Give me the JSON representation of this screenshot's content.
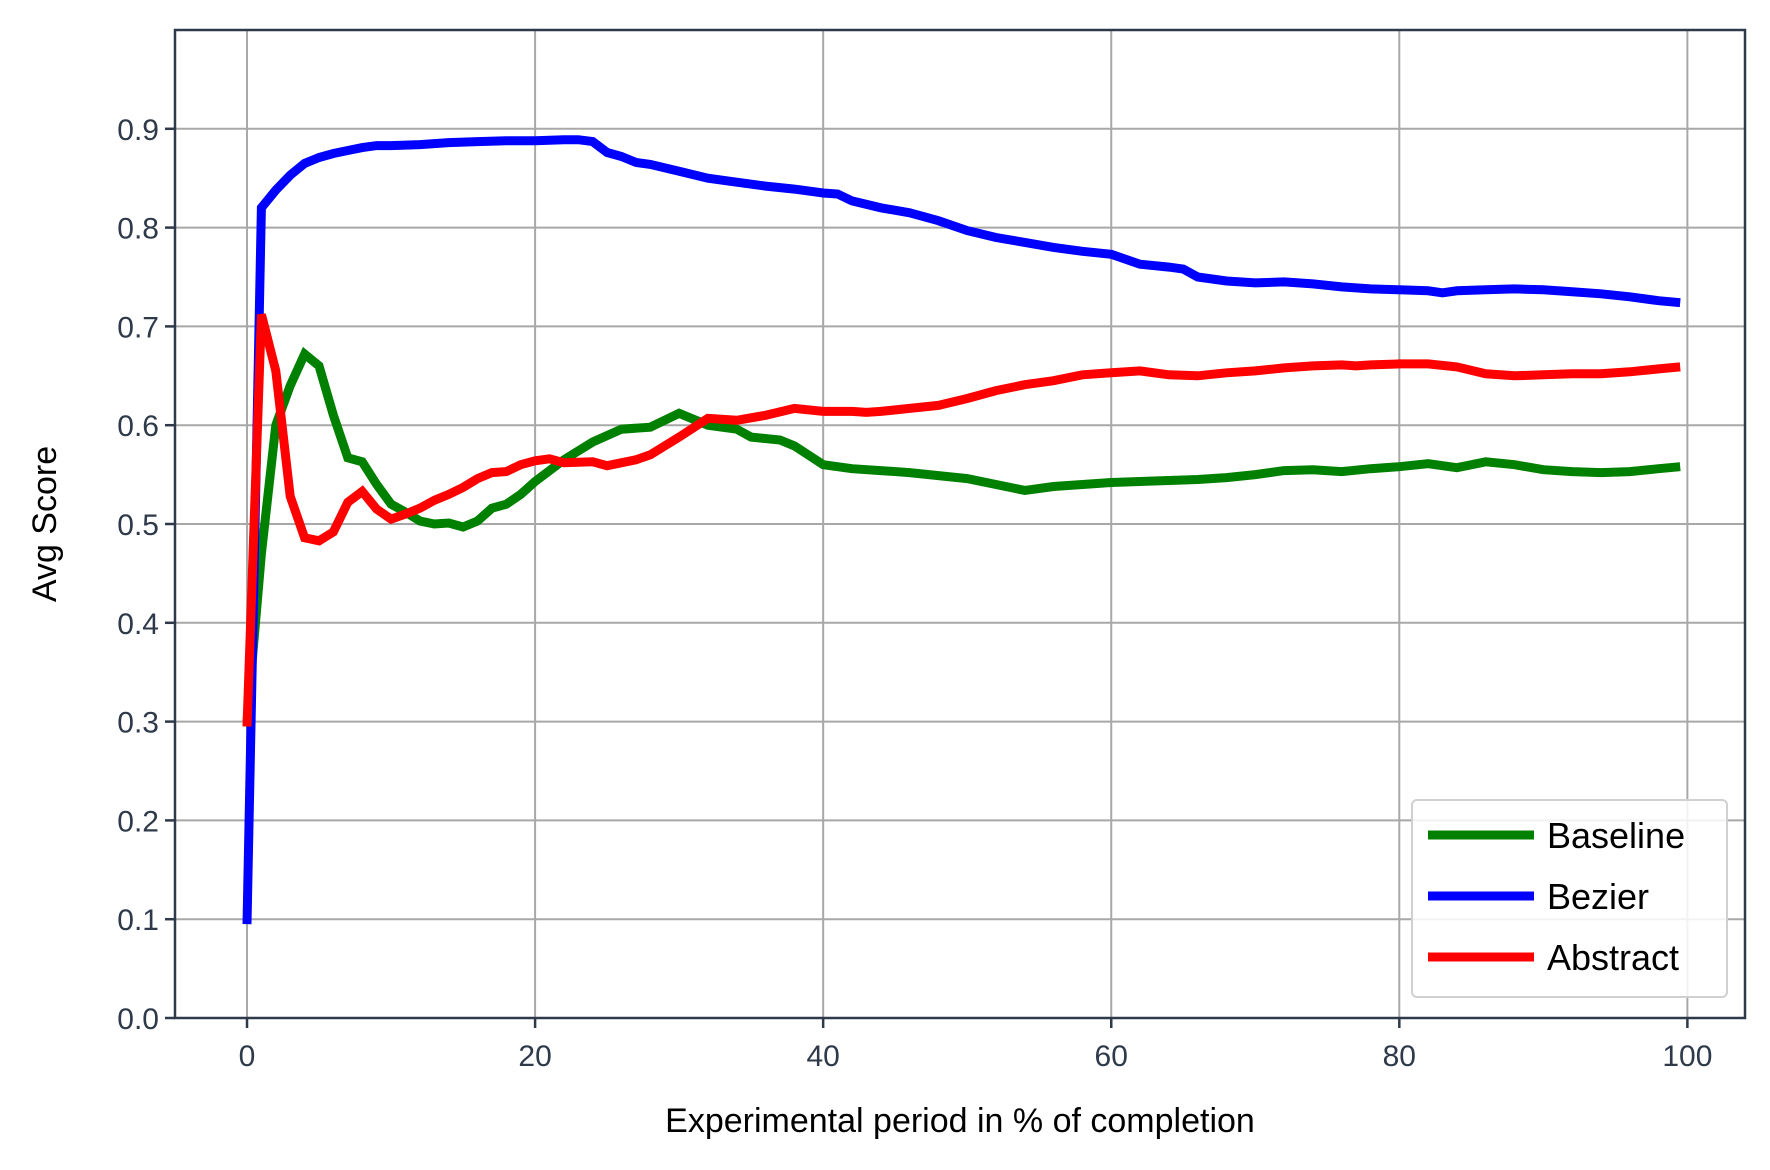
{
  "chart_data": {
    "type": "line",
    "title": "",
    "xlabel": "Experimental period in % of completion",
    "ylabel": "Avg Score",
    "xlim": [
      -5,
      104
    ],
    "ylim": [
      0.0,
      1.0
    ],
    "xticks": [
      0,
      20,
      40,
      60,
      80,
      100
    ],
    "yticks": [
      0.0,
      0.1,
      0.2,
      0.3,
      0.4,
      0.5,
      0.6,
      0.7,
      0.8,
      0.9
    ],
    "xtick_labels": [
      "0",
      "20",
      "40",
      "60",
      "80",
      "100"
    ],
    "ytick_labels": [
      "0.0",
      "0.1",
      "0.2",
      "0.3",
      "0.4",
      "0.5",
      "0.6",
      "0.7",
      "0.8",
      "0.9"
    ],
    "grid": true,
    "legend_position": "bottom-right",
    "series": [
      {
        "name": "Baseline",
        "color": "#008000",
        "x": [
          0,
          1,
          2,
          3,
          4,
          5,
          6,
          7,
          8,
          9,
          10,
          11,
          12,
          13,
          14,
          15,
          16,
          17,
          18,
          19,
          20,
          22,
          24,
          26,
          28,
          30,
          32,
          34,
          35,
          37,
          38,
          40,
          42,
          44,
          46,
          48,
          50,
          52,
          54,
          56,
          58,
          60,
          62,
          64,
          66,
          68,
          70,
          72,
          74,
          76,
          78,
          80,
          82,
          84,
          86,
          88,
          90,
          92,
          94,
          96,
          98,
          99.5
        ],
        "y": [
          0.3,
          0.47,
          0.6,
          0.64,
          0.672,
          0.66,
          0.61,
          0.567,
          0.563,
          0.54,
          0.52,
          0.512,
          0.503,
          0.5,
          0.501,
          0.497,
          0.503,
          0.516,
          0.52,
          0.53,
          0.543,
          0.565,
          0.583,
          0.596,
          0.598,
          0.612,
          0.6,
          0.596,
          0.588,
          0.585,
          0.579,
          0.56,
          0.556,
          0.554,
          0.552,
          0.549,
          0.546,
          0.54,
          0.534,
          0.538,
          0.54,
          0.542,
          0.543,
          0.544,
          0.545,
          0.547,
          0.55,
          0.554,
          0.555,
          0.553,
          0.556,
          0.558,
          0.561,
          0.557,
          0.563,
          0.56,
          0.555,
          0.553,
          0.552,
          0.553,
          0.556,
          0.558
        ]
      },
      {
        "name": "Bezier",
        "color": "#0000ff",
        "x": [
          0,
          1,
          2,
          3,
          4,
          5,
          6,
          7,
          8,
          9,
          10,
          12,
          14,
          16,
          18,
          20,
          22,
          23,
          24,
          25,
          26,
          27,
          28,
          30,
          32,
          34,
          36,
          38,
          40,
          41,
          42,
          44,
          46,
          48,
          50,
          52,
          54,
          56,
          58,
          60,
          62,
          64,
          65,
          66,
          68,
          70,
          72,
          74,
          76,
          78,
          80,
          82,
          83,
          84,
          86,
          88,
          90,
          92,
          94,
          96,
          98,
          99.5
        ],
        "y": [
          0.095,
          0.82,
          0.838,
          0.853,
          0.865,
          0.871,
          0.875,
          0.878,
          0.881,
          0.883,
          0.883,
          0.884,
          0.886,
          0.887,
          0.888,
          0.888,
          0.889,
          0.889,
          0.887,
          0.876,
          0.872,
          0.866,
          0.864,
          0.857,
          0.85,
          0.846,
          0.842,
          0.839,
          0.835,
          0.834,
          0.827,
          0.82,
          0.815,
          0.807,
          0.797,
          0.79,
          0.785,
          0.78,
          0.776,
          0.773,
          0.763,
          0.76,
          0.758,
          0.75,
          0.746,
          0.744,
          0.745,
          0.743,
          0.74,
          0.738,
          0.737,
          0.736,
          0.734,
          0.736,
          0.737,
          0.738,
          0.737,
          0.735,
          0.733,
          0.73,
          0.726,
          0.724
        ]
      },
      {
        "name": "Abstract",
        "color": "#ff0000",
        "x": [
          0,
          1,
          2,
          3,
          4,
          5,
          6,
          7,
          8,
          9,
          10,
          11,
          12,
          13,
          14,
          15,
          16,
          17,
          18,
          19,
          20,
          21,
          22,
          24,
          25,
          27,
          28,
          30,
          32,
          34,
          36,
          38,
          40,
          42,
          43,
          44,
          46,
          48,
          50,
          52,
          54,
          56,
          58,
          60,
          62,
          64,
          66,
          68,
          70,
          72,
          74,
          76,
          77,
          78,
          80,
          82,
          84,
          86,
          88,
          90,
          92,
          94,
          96,
          98,
          99.5
        ],
        "y": [
          0.295,
          0.712,
          0.655,
          0.528,
          0.486,
          0.483,
          0.492,
          0.522,
          0.533,
          0.515,
          0.505,
          0.51,
          0.516,
          0.524,
          0.53,
          0.537,
          0.546,
          0.552,
          0.553,
          0.56,
          0.564,
          0.566,
          0.562,
          0.563,
          0.559,
          0.565,
          0.57,
          0.588,
          0.607,
          0.605,
          0.61,
          0.617,
          0.614,
          0.614,
          0.613,
          0.614,
          0.617,
          0.62,
          0.627,
          0.635,
          0.641,
          0.645,
          0.651,
          0.653,
          0.655,
          0.651,
          0.65,
          0.653,
          0.655,
          0.658,
          0.66,
          0.661,
          0.66,
          0.661,
          0.662,
          0.662,
          0.659,
          0.652,
          0.65,
          0.651,
          0.652,
          0.652,
          0.654,
          0.657,
          0.659
        ]
      }
    ]
  }
}
